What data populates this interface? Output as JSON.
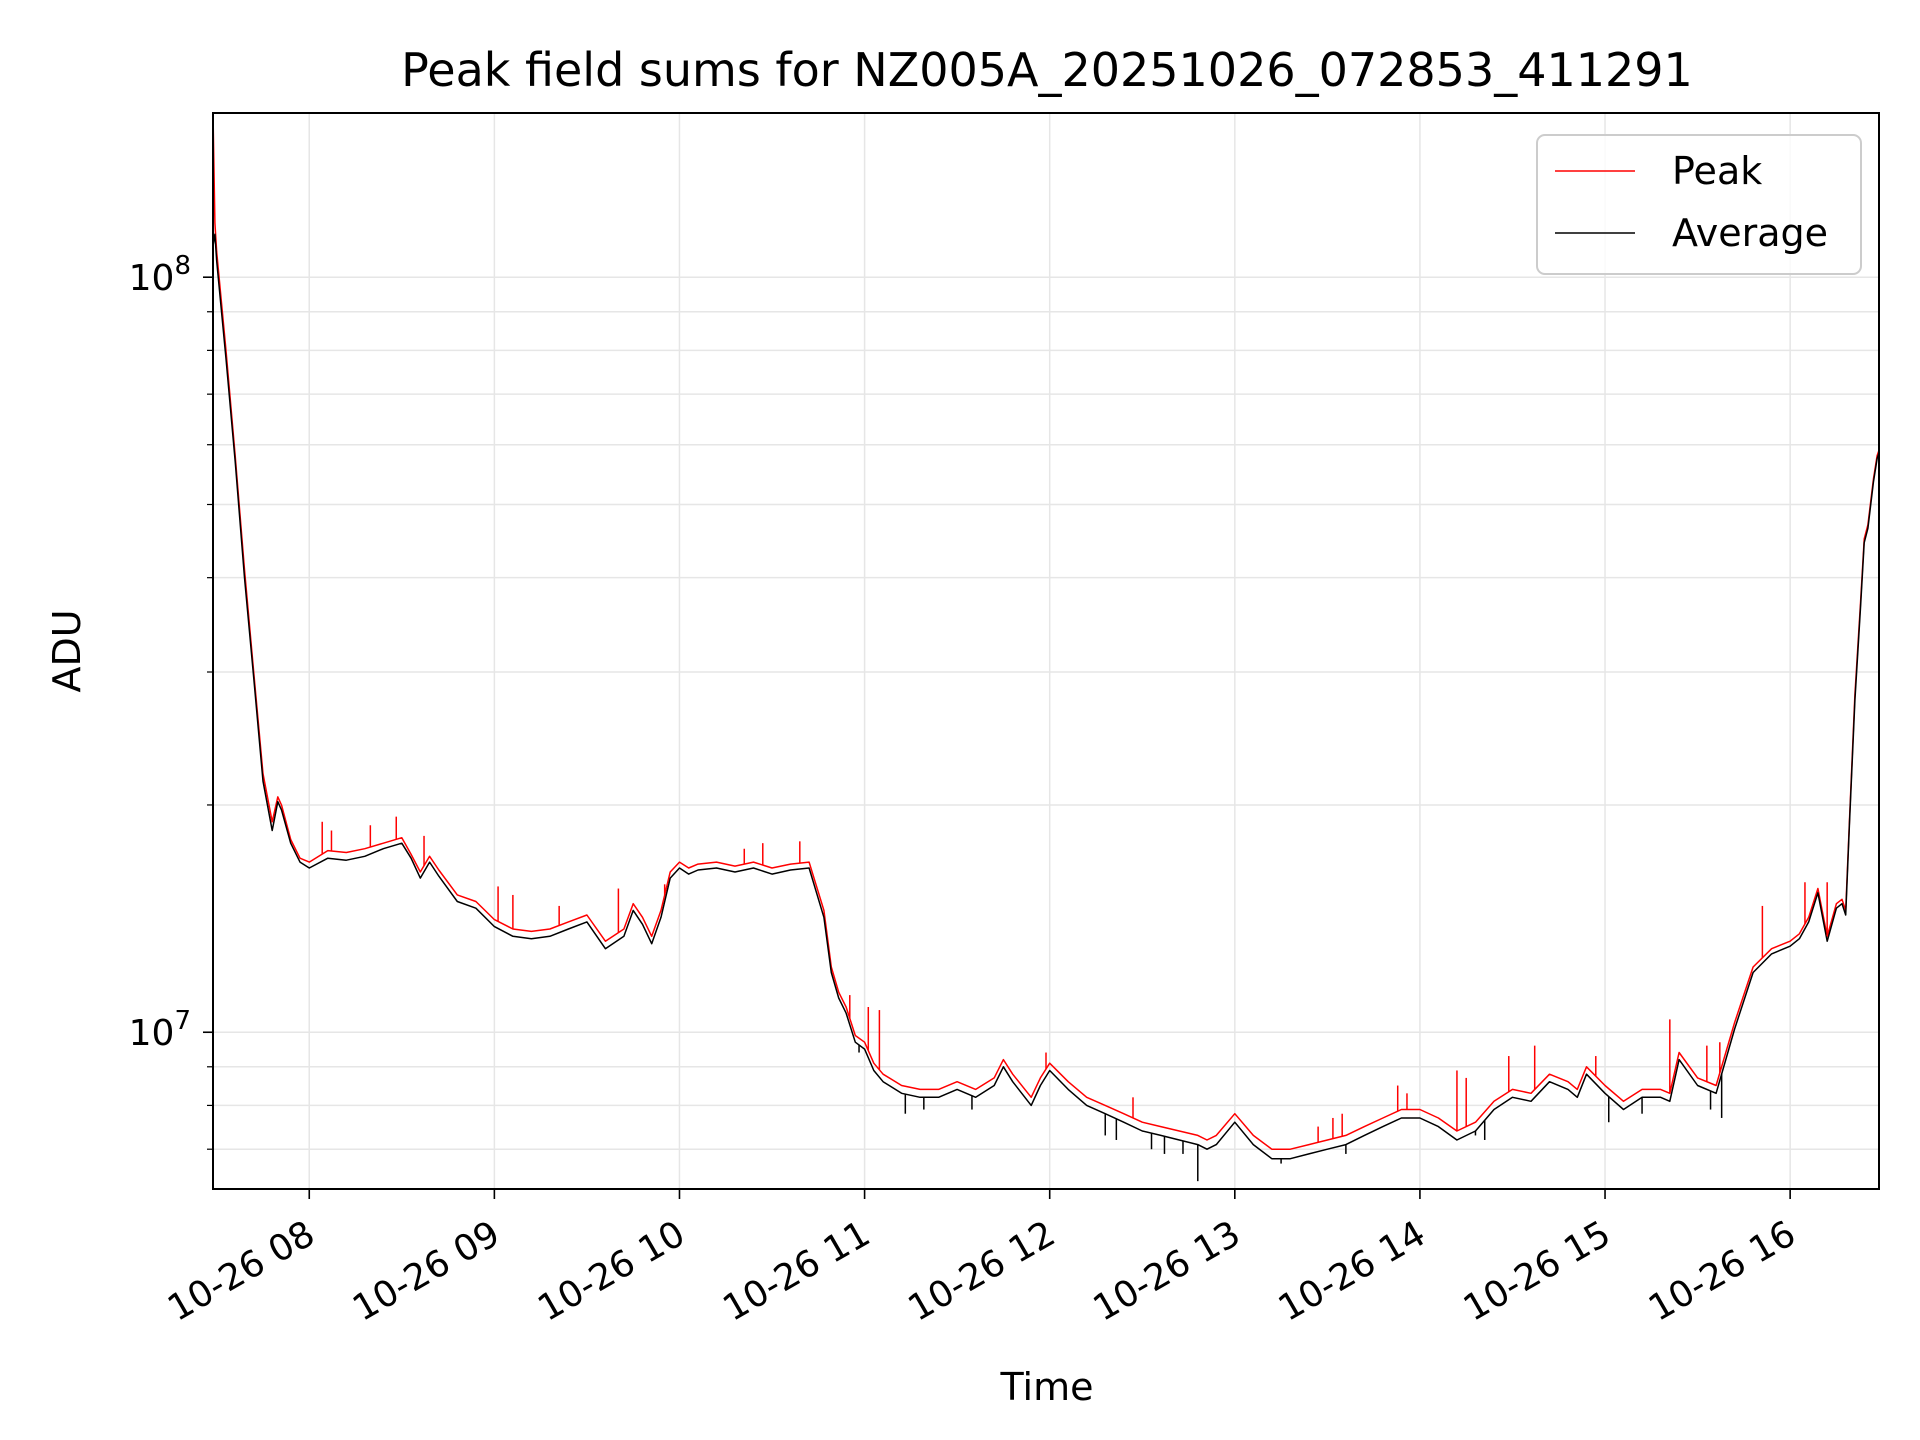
{
  "chart_data": {
    "type": "line",
    "title": "Peak field sums for NZ005A_20251026_072853_411291",
    "xlabel": "Time",
    "ylabel": "ADU",
    "yscale": "log",
    "xlim_hours": [
      7.48,
      16.48
    ],
    "ylim": [
      6200000,
      165000000
    ],
    "grid": true,
    "legend_position": "upper right",
    "x_tick_labels": [
      {
        "hour": 8,
        "label": "10-26 08"
      },
      {
        "hour": 9,
        "label": "10-26 09"
      },
      {
        "hour": 10,
        "label": "10-26 10"
      },
      {
        "hour": 11,
        "label": "10-26 11"
      },
      {
        "hour": 12,
        "label": "10-26 12"
      },
      {
        "hour": 13,
        "label": "10-26 13"
      },
      {
        "hour": 14,
        "label": "10-26 14"
      },
      {
        "hour": 15,
        "label": "10-26 15"
      },
      {
        "hour": 16,
        "label": "10-26 16"
      }
    ],
    "y_major_ticks": [
      {
        "value": 10000000,
        "base": "10",
        "exp": "7"
      },
      {
        "value": 100000000,
        "base": "10",
        "exp": "8"
      }
    ],
    "series": [
      {
        "name": "Peak",
        "color": "#ff0000",
        "x_hours": [
          7.48,
          7.49,
          7.5,
          7.55,
          7.6,
          7.65,
          7.7,
          7.75,
          7.8,
          7.83,
          7.85,
          7.9,
          7.95,
          8.0,
          8.1,
          8.2,
          8.3,
          8.4,
          8.5,
          8.55,
          8.6,
          8.65,
          8.7,
          8.8,
          8.9,
          9.0,
          9.1,
          9.2,
          9.3,
          9.4,
          9.5,
          9.6,
          9.7,
          9.75,
          9.8,
          9.85,
          9.9,
          9.95,
          10.0,
          10.05,
          10.1,
          10.2,
          10.3,
          10.4,
          10.5,
          10.6,
          10.7,
          10.78,
          10.82,
          10.86,
          10.9,
          10.95,
          11.0,
          11.05,
          11.1,
          11.2,
          11.3,
          11.4,
          11.5,
          11.6,
          11.7,
          11.75,
          11.8,
          11.9,
          11.95,
          12.0,
          12.1,
          12.2,
          12.3,
          12.4,
          12.5,
          12.6,
          12.7,
          12.8,
          12.85,
          12.9,
          13.0,
          13.1,
          13.2,
          13.3,
          13.4,
          13.5,
          13.6,
          13.7,
          13.8,
          13.9,
          14.0,
          14.1,
          14.2,
          14.3,
          14.4,
          14.5,
          14.6,
          14.7,
          14.8,
          14.85,
          14.9,
          15.0,
          15.1,
          15.2,
          15.3,
          15.35,
          15.4,
          15.5,
          15.6,
          15.7,
          15.8,
          15.9,
          16.0,
          16.05,
          16.1,
          16.15,
          16.2,
          16.25,
          16.28,
          16.3,
          16.32,
          16.35,
          16.38,
          16.4,
          16.42,
          16.45,
          16.47,
          16.48
        ],
        "values": [
          165000000,
          118000000,
          108000000,
          80000000,
          58000000,
          41000000,
          30000000,
          22000000,
          19000000,
          20500000,
          20000000,
          18000000,
          17000000,
          16800000,
          17400000,
          17300000,
          17500000,
          17800000,
          18100000,
          17200000,
          16300000,
          17100000,
          16400000,
          15200000,
          14900000,
          14100000,
          13700000,
          13600000,
          13700000,
          14000000,
          14300000,
          13200000,
          13700000,
          14800000,
          14200000,
          13400000,
          14500000,
          16300000,
          16800000,
          16500000,
          16700000,
          16800000,
          16600000,
          16800000,
          16500000,
          16700000,
          16800000,
          14500000,
          12200000,
          11300000,
          10800000,
          9900000,
          9700000,
          9100000,
          8800000,
          8500000,
          8400000,
          8400000,
          8600000,
          8400000,
          8700000,
          9200000,
          8800000,
          8200000,
          8700000,
          9100000,
          8600000,
          8200000,
          8000000,
          7800000,
          7600000,
          7500000,
          7400000,
          7300000,
          7200000,
          7300000,
          7800000,
          7300000,
          7000000,
          7000000,
          7100000,
          7200000,
          7300000,
          7500000,
          7700000,
          7900000,
          7900000,
          7700000,
          7400000,
          7600000,
          8100000,
          8400000,
          8300000,
          8800000,
          8600000,
          8400000,
          9000000,
          8500000,
          8100000,
          8400000,
          8400000,
          8300000,
          9400000,
          8700000,
          8500000,
          10300000,
          12200000,
          12900000,
          13200000,
          13500000,
          14200000,
          15500000,
          13400000,
          14800000,
          15000000,
          14500000,
          19000000,
          28000000,
          37000000,
          45000000,
          47000000,
          54000000,
          58000000,
          59000000
        ],
        "spikes": [
          {
            "hour": 8.07,
            "value": 19000000
          },
          {
            "hour": 8.12,
            "value": 18500000
          },
          {
            "hour": 8.33,
            "value": 18800000
          },
          {
            "hour": 8.47,
            "value": 19300000
          },
          {
            "hour": 8.62,
            "value": 18200000
          },
          {
            "hour": 9.02,
            "value": 15600000
          },
          {
            "hour": 9.1,
            "value": 15200000
          },
          {
            "hour": 9.35,
            "value": 14700000
          },
          {
            "hour": 9.67,
            "value": 15500000
          },
          {
            "hour": 9.92,
            "value": 15700000
          },
          {
            "hour": 10.35,
            "value": 17500000
          },
          {
            "hour": 10.45,
            "value": 17800000
          },
          {
            "hour": 10.65,
            "value": 17900000
          },
          {
            "hour": 10.92,
            "value": 11200000
          },
          {
            "hour": 11.02,
            "value": 10800000
          },
          {
            "hour": 11.08,
            "value": 10700000
          },
          {
            "hour": 11.98,
            "value": 9400000
          },
          {
            "hour": 12.45,
            "value": 8200000
          },
          {
            "hour": 13.45,
            "value": 7500000
          },
          {
            "hour": 13.53,
            "value": 7700000
          },
          {
            "hour": 13.58,
            "value": 7800000
          },
          {
            "hour": 13.88,
            "value": 8500000
          },
          {
            "hour": 13.93,
            "value": 8300000
          },
          {
            "hour": 14.2,
            "value": 8900000
          },
          {
            "hour": 14.25,
            "value": 8700000
          },
          {
            "hour": 14.48,
            "value": 9300000
          },
          {
            "hour": 14.62,
            "value": 9600000
          },
          {
            "hour": 14.95,
            "value": 9300000
          },
          {
            "hour": 15.35,
            "value": 10400000
          },
          {
            "hour": 15.55,
            "value": 9600000
          },
          {
            "hour": 15.62,
            "value": 9700000
          },
          {
            "hour": 15.85,
            "value": 14700000
          },
          {
            "hour": 16.08,
            "value": 15800000
          },
          {
            "hour": 16.2,
            "value": 15800000
          }
        ]
      },
      {
        "name": "Average",
        "color": "#000000",
        "x_hours": [
          7.48,
          7.49,
          7.5,
          7.55,
          7.6,
          7.65,
          7.7,
          7.75,
          7.8,
          7.83,
          7.85,
          7.9,
          7.95,
          8.0,
          8.1,
          8.2,
          8.3,
          8.4,
          8.5,
          8.55,
          8.6,
          8.65,
          8.7,
          8.8,
          8.9,
          9.0,
          9.1,
          9.2,
          9.3,
          9.4,
          9.5,
          9.6,
          9.7,
          9.75,
          9.8,
          9.85,
          9.9,
          9.95,
          10.0,
          10.05,
          10.1,
          10.2,
          10.3,
          10.4,
          10.5,
          10.6,
          10.7,
          10.78,
          10.82,
          10.86,
          10.9,
          10.95,
          11.0,
          11.05,
          11.1,
          11.2,
          11.3,
          11.4,
          11.5,
          11.6,
          11.7,
          11.75,
          11.8,
          11.9,
          11.95,
          12.0,
          12.1,
          12.2,
          12.3,
          12.4,
          12.5,
          12.6,
          12.7,
          12.8,
          12.85,
          12.9,
          13.0,
          13.1,
          13.2,
          13.3,
          13.4,
          13.5,
          13.6,
          13.7,
          13.8,
          13.9,
          14.0,
          14.1,
          14.2,
          14.3,
          14.4,
          14.5,
          14.6,
          14.7,
          14.8,
          14.85,
          14.9,
          15.0,
          15.1,
          15.2,
          15.3,
          15.35,
          15.4,
          15.5,
          15.6,
          15.7,
          15.8,
          15.9,
          16.0,
          16.05,
          16.1,
          16.15,
          16.2,
          16.25,
          16.28,
          16.3,
          16.32,
          16.35,
          16.38,
          16.4,
          16.42,
          16.45,
          16.47,
          16.48
        ],
        "values": [
          110000000,
          114000000,
          105000000,
          78000000,
          57000000,
          40000000,
          29500000,
          21500000,
          18500000,
          20200000,
          19700000,
          17800000,
          16800000,
          16500000,
          17000000,
          16900000,
          17100000,
          17500000,
          17800000,
          17000000,
          16000000,
          16800000,
          16100000,
          14900000,
          14600000,
          13800000,
          13400000,
          13300000,
          13400000,
          13700000,
          14000000,
          12900000,
          13400000,
          14500000,
          13900000,
          13100000,
          14200000,
          16000000,
          16500000,
          16200000,
          16400000,
          16500000,
          16300000,
          16500000,
          16200000,
          16400000,
          16500000,
          14200000,
          12000000,
          11100000,
          10600000,
          9700000,
          9500000,
          8900000,
          8600000,
          8300000,
          8200000,
          8200000,
          8400000,
          8200000,
          8500000,
          9000000,
          8600000,
          8000000,
          8500000,
          8900000,
          8400000,
          8000000,
          7800000,
          7600000,
          7400000,
          7300000,
          7200000,
          7100000,
          7000000,
          7100000,
          7600000,
          7100000,
          6800000,
          6800000,
          6900000,
          7000000,
          7100000,
          7300000,
          7500000,
          7700000,
          7700000,
          7500000,
          7200000,
          7400000,
          7900000,
          8200000,
          8100000,
          8600000,
          8400000,
          8200000,
          8800000,
          8300000,
          7900000,
          8200000,
          8200000,
          8100000,
          9200000,
          8500000,
          8300000,
          10100000,
          12000000,
          12700000,
          13000000,
          13300000,
          14000000,
          15300000,
          13200000,
          14600000,
          14800000,
          14300000,
          18800000,
          27500000,
          36500000,
          44500000,
          46500000,
          53500000,
          57500000,
          58500000
        ],
        "dips": [
          {
            "hour": 10.97,
            "value": 9400000
          },
          {
            "hour": 11.22,
            "value": 7800000
          },
          {
            "hour": 11.32,
            "value": 7900000
          },
          {
            "hour": 11.58,
            "value": 7900000
          },
          {
            "hour": 12.3,
            "value": 7300000
          },
          {
            "hour": 12.36,
            "value": 7200000
          },
          {
            "hour": 12.55,
            "value": 7000000
          },
          {
            "hour": 12.62,
            "value": 6900000
          },
          {
            "hour": 12.72,
            "value": 6900000
          },
          {
            "hour": 12.8,
            "value": 6350000
          },
          {
            "hour": 13.25,
            "value": 6700000
          },
          {
            "hour": 13.6,
            "value": 6900000
          },
          {
            "hour": 14.3,
            "value": 7300000
          },
          {
            "hour": 14.35,
            "value": 7200000
          },
          {
            "hour": 15.02,
            "value": 7600000
          },
          {
            "hour": 15.2,
            "value": 7800000
          },
          {
            "hour": 15.57,
            "value": 7900000
          },
          {
            "hour": 15.63,
            "value": 7700000
          }
        ]
      }
    ]
  }
}
